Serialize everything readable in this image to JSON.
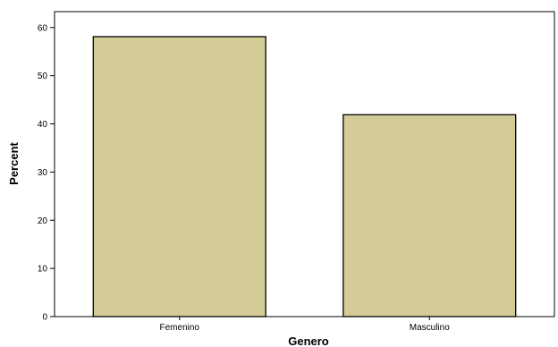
{
  "chart_data": {
    "type": "bar",
    "title": "",
    "xlabel": "Genero",
    "ylabel": "Percent",
    "categories": [
      "Femenino",
      "Masculino"
    ],
    "values": [
      58.1,
      41.9
    ],
    "ylim": [
      0,
      63.3
    ],
    "yticks": [
      "0",
      "10",
      "20",
      "30",
      "40",
      "50",
      "60"
    ],
    "grid": false,
    "legend": "none",
    "bar_color": "#d4cc96",
    "bar_edge_color": "#000000"
  }
}
